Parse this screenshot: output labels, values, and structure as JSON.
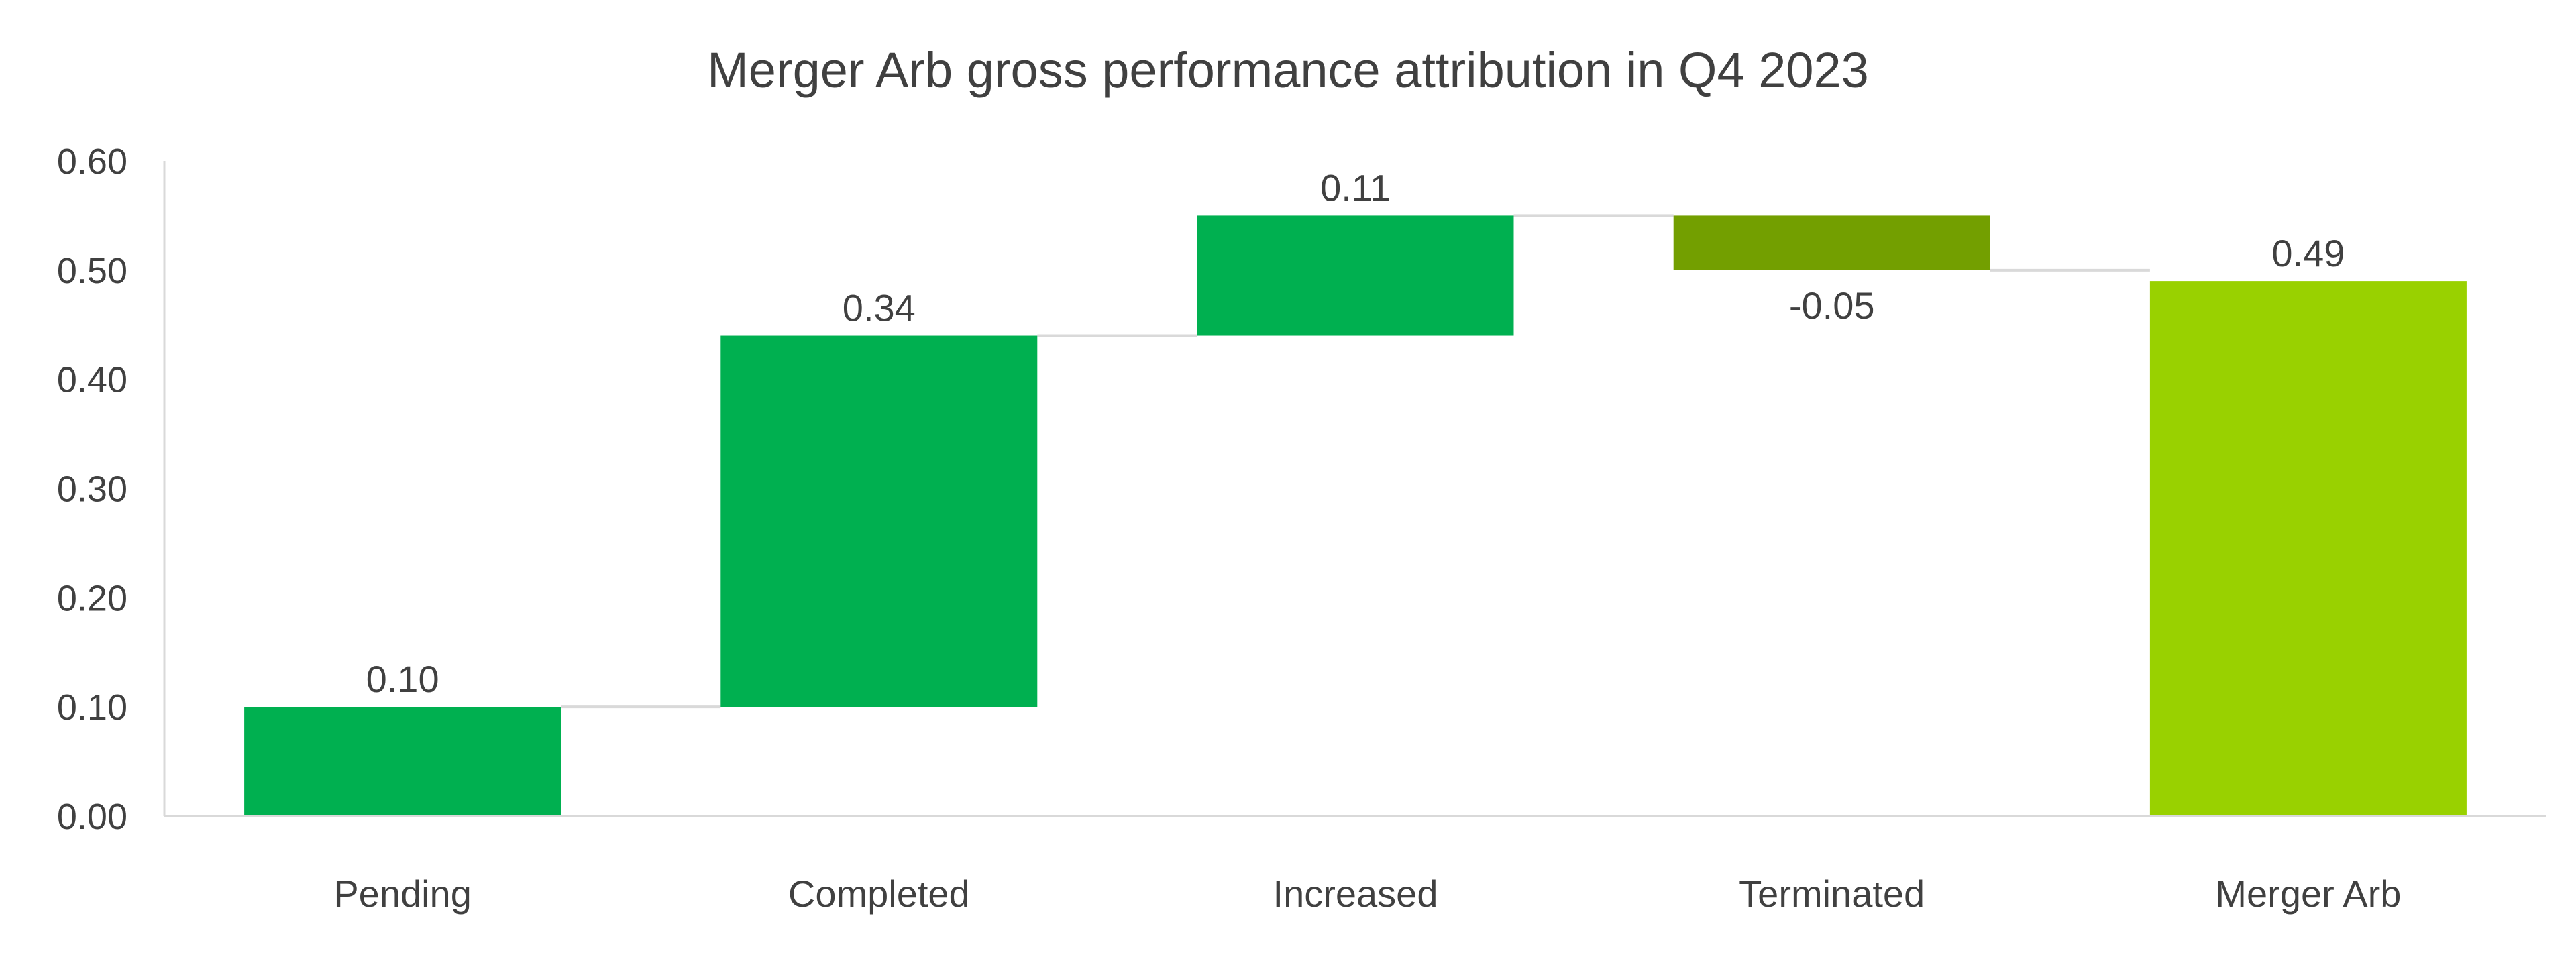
{
  "chart_data": {
    "type": "bar",
    "subtype": "waterfall",
    "title": "Merger Arb gross performance attribution in Q4 2023",
    "xlabel": "",
    "ylabel": "",
    "ylim": [
      0,
      0.6
    ],
    "yticks": [
      "0.00",
      "0.10",
      "0.20",
      "0.30",
      "0.40",
      "0.50",
      "0.60"
    ],
    "grid": false,
    "categories": [
      "Pending",
      "Completed",
      "Increased",
      "Terminated",
      "Merger Arb"
    ],
    "values": [
      0.1,
      0.34,
      0.11,
      -0.05,
      0.49
    ],
    "labels": [
      "0.10",
      "0.34",
      "0.11",
      "-0.05",
      "0.49"
    ],
    "is_total": [
      false,
      false,
      false,
      false,
      true
    ],
    "colors": {
      "increase": "#00B050",
      "decrease": "#739F00",
      "total": "#99D100",
      "connector": "#D9D9D9",
      "axis": "#D9D9D9"
    }
  }
}
